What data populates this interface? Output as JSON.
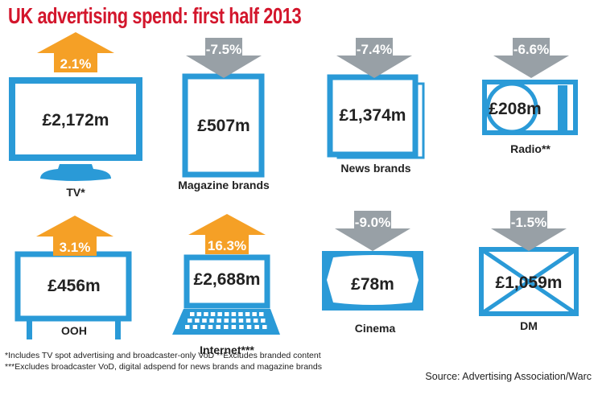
{
  "title": "UK advertising spend: first half 2013",
  "colors": {
    "title": "#d3162c",
    "blue": "#2a9ad7",
    "increase": "#f5a026",
    "decrease": "#98a0a6",
    "text": "#222222"
  },
  "chart_data": {
    "type": "infographic",
    "title": "UK advertising spend: first half 2013",
    "items": [
      {
        "label": "TV*",
        "spend_label": "£2,172m",
        "spend_millions_gbp": 2172,
        "change_label": "2.1%",
        "change_percent": 2.1,
        "direction": "up",
        "icon": "tv-icon"
      },
      {
        "label": "Magazine brands",
        "spend_label": "£507m",
        "spend_millions_gbp": 507,
        "change_label": "-7.5%",
        "change_percent": -7.5,
        "direction": "down",
        "icon": "magazine-icon"
      },
      {
        "label": "News brands",
        "spend_label": "£1,374m",
        "spend_millions_gbp": 1374,
        "change_label": "-7.4%",
        "change_percent": -7.4,
        "direction": "down",
        "icon": "newspaper-icon"
      },
      {
        "label": "Radio**",
        "spend_label": "£208m",
        "spend_millions_gbp": 208,
        "change_label": "-6.6%",
        "change_percent": -6.6,
        "direction": "down",
        "icon": "radio-icon"
      },
      {
        "label": "OOH",
        "spend_label": "£456m",
        "spend_millions_gbp": 456,
        "change_label": "3.1%",
        "change_percent": 3.1,
        "direction": "up",
        "icon": "billboard-icon"
      },
      {
        "label": "Internet***",
        "spend_label": "£2,688m",
        "spend_millions_gbp": 2688,
        "change_label": "16.3%",
        "change_percent": 16.3,
        "direction": "up",
        "icon": "laptop-icon"
      },
      {
        "label": "Cinema",
        "spend_label": "£78m",
        "spend_millions_gbp": 78,
        "change_label": "-9.0%",
        "change_percent": -9.0,
        "direction": "down",
        "icon": "cinema-screen-icon"
      },
      {
        "label": "DM",
        "spend_label": "£1,059m",
        "spend_millions_gbp": 1059,
        "change_label": "-1.5%",
        "change_percent": -1.5,
        "direction": "down",
        "icon": "envelope-icon"
      }
    ]
  },
  "footnotes": {
    "line1": "*Includes TV spot advertising and broadcaster-only VoD **Excludes branded content",
    "line2": "***Excludes broadcaster VoD, digital adspend for news brands and magazine brands"
  },
  "source": "Source: Advertising Association/Warc"
}
